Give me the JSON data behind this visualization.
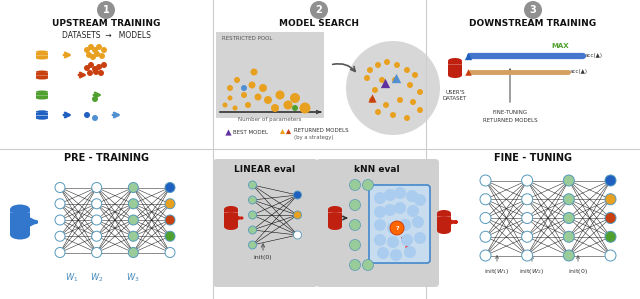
{
  "background": "#ffffff",
  "colors": {
    "orange": "#e8a020",
    "dark_orange": "#c84010",
    "green": "#50a030",
    "blue": "#2060c0",
    "light_blue": "#5090d0",
    "purple": "#6030a0",
    "red_db": "#c02010",
    "node_blue": "#aaddff",
    "node_green": "#88cc88",
    "gray_badge": "#909090",
    "pool_bg": "#d0d0d0",
    "circle_bg": "#cecece",
    "eval_bg": "#d0d0d0",
    "knn_box_bg": "#c8dcf0",
    "knn_box_ec": "#4488cc"
  },
  "dividers": {
    "vertical": [
      213,
      426
    ],
    "horizontal": [
      149
    ]
  }
}
